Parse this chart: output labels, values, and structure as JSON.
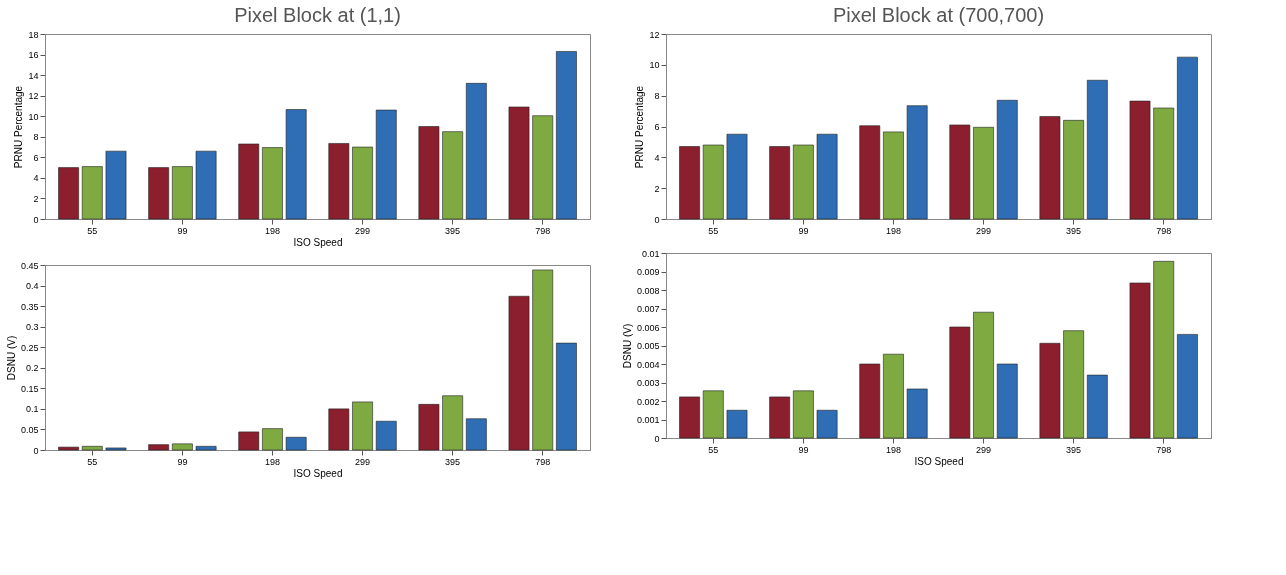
{
  "chart_data": [
    {
      "type": "bar",
      "title": "Pixel Block at (1,1)",
      "xlabel": "ISO Speed",
      "ylabel": "PRNU Percentage",
      "categories": [
        "55",
        "99",
        "198",
        "299",
        "395",
        "798"
      ],
      "ylim": [
        0,
        18
      ],
      "yticks": [
        0,
        2,
        4,
        6,
        8,
        10,
        12,
        14,
        16,
        18
      ],
      "grid": false,
      "legend": false,
      "series": [
        {
          "color": "#8c1f2e",
          "values": [
            5.0,
            5.0,
            7.3,
            7.35,
            9.0,
            10.9
          ]
        },
        {
          "color": "#7faa42",
          "values": [
            5.1,
            5.1,
            6.95,
            7.0,
            8.5,
            10.05
          ]
        },
        {
          "color": "#2f6db5",
          "values": [
            6.6,
            6.6,
            10.65,
            10.6,
            13.2,
            16.3
          ]
        }
      ]
    },
    {
      "type": "bar",
      "xlabel": "ISO Speed",
      "ylabel": "DSNU (V)",
      "categories": [
        "55",
        "99",
        "198",
        "299",
        "395",
        "798"
      ],
      "ylim": [
        0,
        0.45
      ],
      "yticks": [
        0,
        0.05,
        0.1,
        0.15,
        0.2,
        0.25,
        0.3,
        0.35,
        0.4,
        0.45
      ],
      "grid": false,
      "legend": false,
      "series": [
        {
          "color": "#8c1f2e",
          "values": [
            0.007,
            0.013,
            0.044,
            0.1,
            0.111,
            0.374
          ]
        },
        {
          "color": "#7faa42",
          "values": [
            0.009,
            0.015,
            0.052,
            0.117,
            0.132,
            0.438
          ]
        },
        {
          "color": "#2f6db5",
          "values": [
            0.005,
            0.009,
            0.031,
            0.07,
            0.076,
            0.26
          ]
        }
      ]
    },
    {
      "type": "bar",
      "title": "Pixel Block at (700,700)",
      "ylabel": "PRNU Percentage",
      "categories": [
        "55",
        "99",
        "198",
        "299",
        "395",
        "798"
      ],
      "ylim": [
        0,
        12
      ],
      "yticks": [
        0,
        2,
        4,
        6,
        8,
        10,
        12
      ],
      "grid": false,
      "legend": false,
      "series": [
        {
          "color": "#8c1f2e",
          "values": [
            4.7,
            4.7,
            6.05,
            6.1,
            6.65,
            7.65
          ]
        },
        {
          "color": "#7faa42",
          "values": [
            4.8,
            4.8,
            5.65,
            5.95,
            6.4,
            7.2
          ]
        },
        {
          "color": "#2f6db5",
          "values": [
            5.5,
            5.5,
            7.35,
            7.7,
            9.0,
            10.5
          ]
        }
      ]
    },
    {
      "type": "bar",
      "xlabel": "ISO Speed",
      "ylabel": "DSNU (V)",
      "categories": [
        "55",
        "99",
        "198",
        "299",
        "395",
        "798"
      ],
      "ylim": [
        0,
        0.01
      ],
      "yticks": [
        0,
        0.001,
        0.002,
        0.003,
        0.004,
        0.005,
        0.006,
        0.007,
        0.008,
        0.009,
        0.01
      ],
      "grid": false,
      "legend": false,
      "series": [
        {
          "color": "#8c1f2e",
          "values": [
            0.00222,
            0.00222,
            0.004,
            0.006,
            0.00512,
            0.00838
          ]
        },
        {
          "color": "#7faa42",
          "values": [
            0.00255,
            0.00255,
            0.00453,
            0.0068,
            0.0058,
            0.00955
          ]
        },
        {
          "color": "#2f6db5",
          "values": [
            0.0015,
            0.0015,
            0.00265,
            0.004,
            0.0034,
            0.0056
          ]
        }
      ]
    }
  ]
}
